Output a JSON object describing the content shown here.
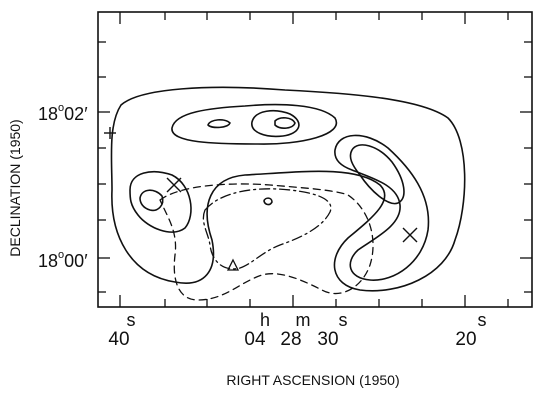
{
  "chart_data": {
    "type": "contour",
    "xlabel": "RIGHT ASCENSION (1950)",
    "ylabel": "DECLINATION (1950)",
    "x_ticks": [
      {
        "unit": "s",
        "label": "40"
      },
      {
        "unit": "h",
        "label": "04"
      },
      {
        "unit": "m",
        "label": "28"
      },
      {
        "unit": "s",
        "label": "30"
      },
      {
        "unit": "s",
        "label": "20"
      }
    ],
    "y_ticks": [
      {
        "label": "18°02′",
        "deg": "18",
        "min": "02"
      },
      {
        "label": "18°00′",
        "deg": "18",
        "min": "00"
      }
    ],
    "markers": [
      "cross",
      "cross",
      "cross",
      "triangle"
    ],
    "line_styles": [
      "solid",
      "dashed",
      "dash-dot"
    ]
  }
}
